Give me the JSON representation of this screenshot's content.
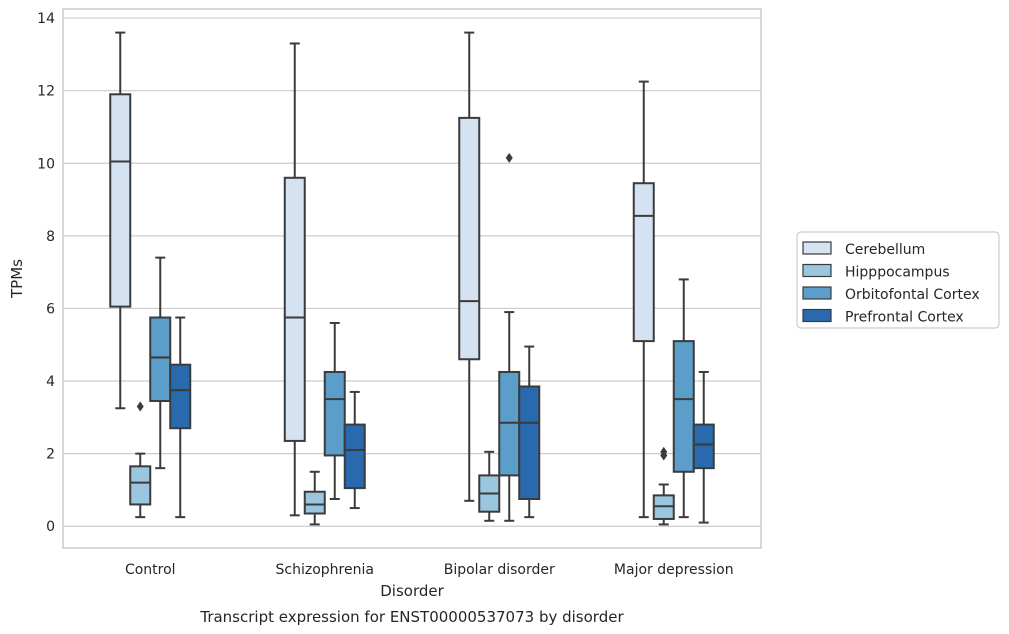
{
  "chart_data": {
    "type": "box",
    "xlabel": "Disorder",
    "ylabel": "TPMs",
    "caption": "Transcript expression for ENST00000537073 by disorder",
    "ylim": [
      -0.6,
      14.25
    ],
    "yticks": [
      "0",
      "2",
      "4",
      "6",
      "8",
      "10",
      "12",
      "14"
    ],
    "grid": true,
    "legend_position": "right",
    "categories": [
      "Control",
      "Schizophrenia",
      "Bipolar disorder",
      "Major depression"
    ],
    "series": [
      {
        "name": "Cerebellum",
        "color": "#d4e2f1",
        "boxes": [
          {
            "whisker_low": 3.25,
            "q1": 6.05,
            "median": 10.05,
            "q3": 11.9,
            "whisker_high": 13.6,
            "outliers": []
          },
          {
            "whisker_low": 0.3,
            "q1": 2.35,
            "median": 5.75,
            "q3": 9.6,
            "whisker_high": 13.3,
            "outliers": []
          },
          {
            "whisker_low": 0.7,
            "q1": 4.6,
            "median": 6.2,
            "q3": 11.25,
            "whisker_high": 13.6,
            "outliers": []
          },
          {
            "whisker_low": 0.25,
            "q1": 5.1,
            "median": 8.55,
            "q3": 9.45,
            "whisker_high": 12.25,
            "outliers": []
          }
        ]
      },
      {
        "name": "Hipppocampus",
        "color": "#9bc6df",
        "boxes": [
          {
            "whisker_low": 0.25,
            "q1": 0.6,
            "median": 1.2,
            "q3": 1.65,
            "whisker_high": 2.0,
            "outliers": [
              3.3
            ]
          },
          {
            "whisker_low": 0.05,
            "q1": 0.35,
            "median": 0.6,
            "q3": 0.95,
            "whisker_high": 1.5,
            "outliers": []
          },
          {
            "whisker_low": 0.15,
            "q1": 0.4,
            "median": 0.9,
            "q3": 1.4,
            "whisker_high": 2.05,
            "outliers": []
          },
          {
            "whisker_low": 0.05,
            "q1": 0.2,
            "median": 0.55,
            "q3": 0.85,
            "whisker_high": 1.15,
            "outliers": [
              2.05,
              1.95
            ]
          }
        ]
      },
      {
        "name": "Orbitofontal Cortex",
        "color": "#5a9ec9",
        "boxes": [
          {
            "whisker_low": 1.6,
            "q1": 3.45,
            "median": 4.65,
            "q3": 5.75,
            "whisker_high": 7.4,
            "outliers": []
          },
          {
            "whisker_low": 0.75,
            "q1": 1.95,
            "median": 3.5,
            "q3": 4.25,
            "whisker_high": 5.6,
            "outliers": []
          },
          {
            "whisker_low": 0.15,
            "q1": 1.4,
            "median": 2.85,
            "q3": 4.25,
            "whisker_high": 5.9,
            "outliers": [
              10.15
            ]
          },
          {
            "whisker_low": 0.25,
            "q1": 1.5,
            "median": 3.5,
            "q3": 5.1,
            "whisker_high": 6.8,
            "outliers": []
          }
        ]
      },
      {
        "name": "Prefrontal Cortex",
        "color": "#2969ae",
        "boxes": [
          {
            "whisker_low": 0.25,
            "q1": 2.7,
            "median": 3.75,
            "q3": 4.45,
            "whisker_high": 5.75,
            "outliers": []
          },
          {
            "whisker_low": 0.5,
            "q1": 1.05,
            "median": 2.1,
            "q3": 2.8,
            "whisker_high": 3.7,
            "outliers": []
          },
          {
            "whisker_low": 0.25,
            "q1": 0.75,
            "median": 2.85,
            "q3": 3.85,
            "whisker_high": 4.95,
            "outliers": []
          },
          {
            "whisker_low": 0.1,
            "q1": 1.6,
            "median": 2.25,
            "q3": 2.8,
            "whisker_high": 4.25,
            "outliers": []
          }
        ]
      }
    ]
  }
}
